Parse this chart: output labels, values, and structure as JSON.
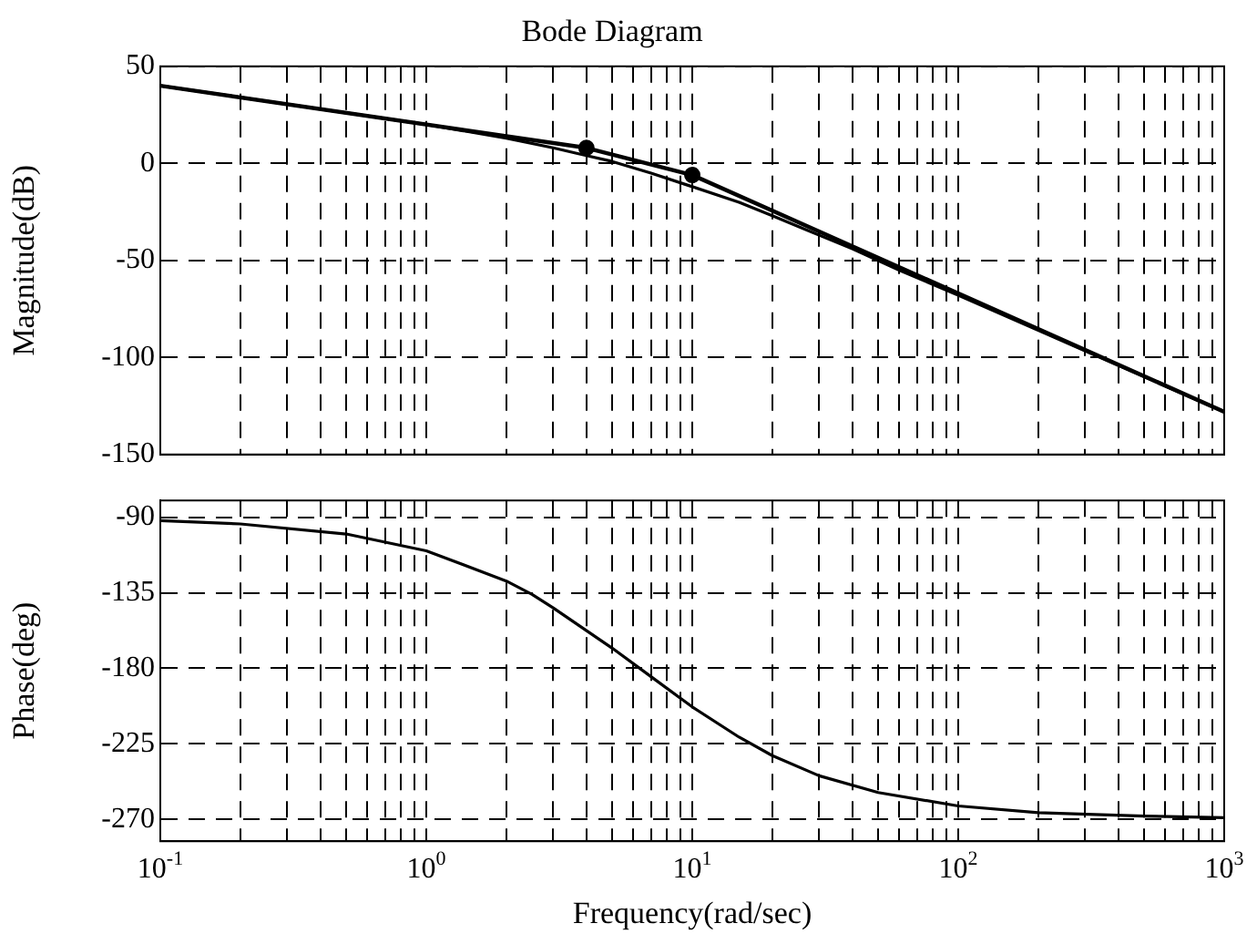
{
  "chart_data": [
    {
      "type": "line",
      "title": "Bode Diagram",
      "ylabel": "Magnitude(dB)",
      "log": "x",
      "grid": true,
      "tick_labels": "y",
      "marker": "none",
      "xlim": [
        0.1,
        1000
      ],
      "xticks": [
        {
          "value": 0.1,
          "label": null
        },
        {
          "value": 0.2,
          "label": null
        },
        {
          "value": 0.3,
          "label": null
        },
        {
          "value": 0.4,
          "label": null
        },
        {
          "value": 0.5,
          "label": null
        },
        {
          "value": 0.6,
          "label": null
        },
        {
          "value": 0.7,
          "label": null
        },
        {
          "value": 0.8,
          "label": null
        },
        {
          "value": 0.9,
          "label": null
        },
        {
          "value": 1,
          "label": null
        },
        {
          "value": 2,
          "label": null
        },
        {
          "value": 3,
          "label": null
        },
        {
          "value": 4,
          "label": null
        },
        {
          "value": 5,
          "label": null
        },
        {
          "value": 6,
          "label": null
        },
        {
          "value": 7,
          "label": null
        },
        {
          "value": 8,
          "label": null
        },
        {
          "value": 9,
          "label": null
        },
        {
          "value": 10,
          "label": null
        },
        {
          "value": 20,
          "label": null
        },
        {
          "value": 30,
          "label": null
        },
        {
          "value": 40,
          "label": null
        },
        {
          "value": 50,
          "label": null
        },
        {
          "value": 60,
          "label": null
        },
        {
          "value": 70,
          "label": null
        },
        {
          "value": 80,
          "label": null
        },
        {
          "value": 90,
          "label": null
        },
        {
          "value": 100,
          "label": null
        },
        {
          "value": 200,
          "label": null
        },
        {
          "value": 300,
          "label": null
        },
        {
          "value": 400,
          "label": null
        },
        {
          "value": 500,
          "label": null
        },
        {
          "value": 600,
          "label": null
        },
        {
          "value": 700,
          "label": null
        },
        {
          "value": 800,
          "label": null
        },
        {
          "value": 900,
          "label": null
        },
        {
          "value": 1000,
          "label": null
        }
      ],
      "ylim": [
        -150,
        50
      ],
      "yticks": [
        -150,
        -100,
        -50,
        0,
        50
      ],
      "series": [
        {
          "color": "#000000",
          "x": [
            0.1,
            0.2,
            0.5,
            1,
            2,
            3,
            4,
            5,
            7,
            10,
            15,
            20,
            30,
            40,
            60,
            100,
            200,
            500,
            1000
          ],
          "values": [
            40,
            34,
            26,
            20,
            13,
            8,
            4,
            1,
            -5,
            -12,
            -20,
            -27,
            -37,
            -44,
            -55,
            -68,
            -86,
            -110,
            -128
          ]
        },
        {
          "color": "#000000",
          "x": [
            0.1,
            4,
            10,
            1000
          ],
          "values": [
            40,
            8,
            -6,
            -128
          ]
        },
        {
          "type": "scatter",
          "marker": "circle",
          "color": "#000000",
          "x": [
            4,
            10
          ],
          "values": [
            8,
            -6
          ]
        }
      ]
    },
    {
      "type": "line",
      "xlabel": "Frequency(rad/sec)",
      "ylabel": "Phase(deg)",
      "log": "x",
      "grid": true,
      "marker": "none",
      "xlim": [
        0.1,
        1000
      ],
      "xticks": [
        {
          "value": 0.1,
          "label": "10$^{-1}$"
        },
        {
          "value": 0.2,
          "label": null
        },
        {
          "value": 0.3,
          "label": null
        },
        {
          "value": 0.4,
          "label": null
        },
        {
          "value": 0.5,
          "label": null
        },
        {
          "value": 0.6,
          "label": null
        },
        {
          "value": 0.7,
          "label": null
        },
        {
          "value": 0.8,
          "label": null
        },
        {
          "value": 0.9,
          "label": null
        },
        {
          "value": 1,
          "label": "10$^{0}$"
        },
        {
          "value": 2,
          "label": null
        },
        {
          "value": 3,
          "label": null
        },
        {
          "value": 4,
          "label": null
        },
        {
          "value": 5,
          "label": null
        },
        {
          "value": 6,
          "label": null
        },
        {
          "value": 7,
          "label": null
        },
        {
          "value": 8,
          "label": null
        },
        {
          "value": 9,
          "label": null
        },
        {
          "value": 10,
          "label": "10$^{1}$"
        },
        {
          "value": 20,
          "label": null
        },
        {
          "value": 30,
          "label": null
        },
        {
          "value": 40,
          "label": null
        },
        {
          "value": 50,
          "label": null
        },
        {
          "value": 60,
          "label": null
        },
        {
          "value": 70,
          "label": null
        },
        {
          "value": 80,
          "label": null
        },
        {
          "value": 90,
          "label": null
        },
        {
          "value": 100,
          "label": "10$^{2}$"
        },
        {
          "value": 200,
          "label": null
        },
        {
          "value": 300,
          "label": null
        },
        {
          "value": 400,
          "label": null
        },
        {
          "value": 500,
          "label": null
        },
        {
          "value": 600,
          "label": null
        },
        {
          "value": 700,
          "label": null
        },
        {
          "value": 800,
          "label": null
        },
        {
          "value": 900,
          "label": null
        },
        {
          "value": 1000,
          "label": "10$^{3}$"
        }
      ],
      "ylim": [
        -283,
        -80
      ],
      "yticks": [
        -270,
        -225,
        -180,
        -135,
        -90
      ],
      "series": [
        {
          "color": "#000000",
          "x": [
            0.1,
            0.2,
            0.5,
            1,
            2,
            2.5,
            3,
            5,
            7,
            10,
            15,
            20,
            30,
            50,
            100,
            200,
            500,
            1000
          ],
          "values": [
            -92,
            -94,
            -100,
            -110,
            -128,
            -136,
            -144,
            -168,
            -185,
            -203,
            -221,
            -232,
            -244,
            -254,
            -262,
            -266,
            -268,
            -269
          ]
        }
      ]
    }
  ]
}
